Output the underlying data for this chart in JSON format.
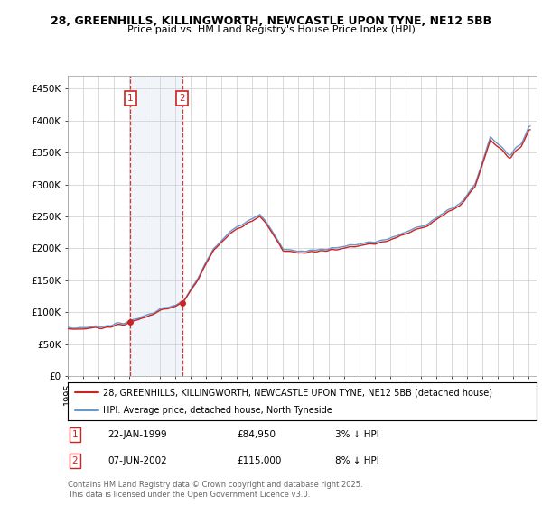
{
  "title_line1": "28, GREENHILLS, KILLINGWORTH, NEWCASTLE UPON TYNE, NE12 5BB",
  "title_line2": "Price paid vs. HM Land Registry's House Price Index (HPI)",
  "ylabel_ticks": [
    "£0",
    "£50K",
    "£100K",
    "£150K",
    "£200K",
    "£250K",
    "£300K",
    "£350K",
    "£400K",
    "£450K"
  ],
  "ylabel_values": [
    0,
    50000,
    100000,
    150000,
    200000,
    250000,
    300000,
    350000,
    400000,
    450000
  ],
  "ylim": [
    0,
    470000
  ],
  "xlim_start": 1995.0,
  "xlim_end": 2025.5,
  "purchase1_date": 1999.06,
  "purchase1_price": 84950,
  "purchase2_date": 2002.44,
  "purchase2_price": 115000,
  "legend_line1": "28, GREENHILLS, KILLINGWORTH, NEWCASTLE UPON TYNE, NE12 5BB (detached house)",
  "legend_line2": "HPI: Average price, detached house, North Tyneside",
  "footnote": "Contains HM Land Registry data © Crown copyright and database right 2025.\nThis data is licensed under the Open Government Licence v3.0.",
  "hpi_color": "#6699cc",
  "price_color": "#cc2222",
  "vline_color": "#cc2222",
  "shade_color": "#ddeeff",
  "grid_color": "#cccccc",
  "background_color": "#ffffff"
}
